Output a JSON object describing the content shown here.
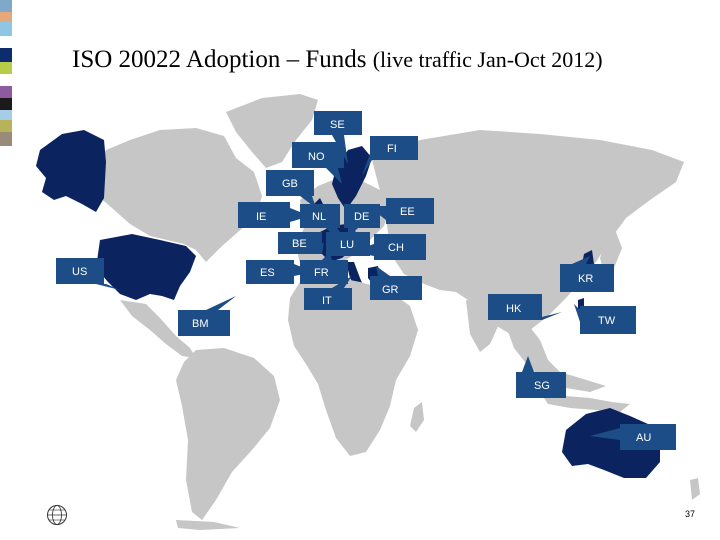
{
  "slide": {
    "title_main": "ISO 20022 Adoption – Funds",
    "title_sub": "(live traffic Jan-Oct 2012)",
    "page_number": "37"
  },
  "colors": {
    "land": "#c6c6c6",
    "highlight": "#0b2460",
    "callout": "#1d4d86",
    "stripes": [
      "#7fa9c8",
      "#e6a77b",
      "#8fc6e6",
      "#ffffff",
      "#0b2d6b",
      "#b7cc48",
      "#1a1a1a",
      "#8e5aa0",
      "#a6cde6",
      "#b8b35a",
      "#9a8a7a"
    ]
  },
  "markets": [
    {
      "code": "SE"
    },
    {
      "code": "FI"
    },
    {
      "code": "NO"
    },
    {
      "code": "GB"
    },
    {
      "code": "IE"
    },
    {
      "code": "NL"
    },
    {
      "code": "DE"
    },
    {
      "code": "EE"
    },
    {
      "code": "BE"
    },
    {
      "code": "LU"
    },
    {
      "code": "CH"
    },
    {
      "code": "US"
    },
    {
      "code": "ES"
    },
    {
      "code": "FR"
    },
    {
      "code": "GR"
    },
    {
      "code": "KR"
    },
    {
      "code": "IT"
    },
    {
      "code": "HK"
    },
    {
      "code": "TW"
    },
    {
      "code": "BM"
    },
    {
      "code": "SG"
    },
    {
      "code": "AU"
    }
  ]
}
